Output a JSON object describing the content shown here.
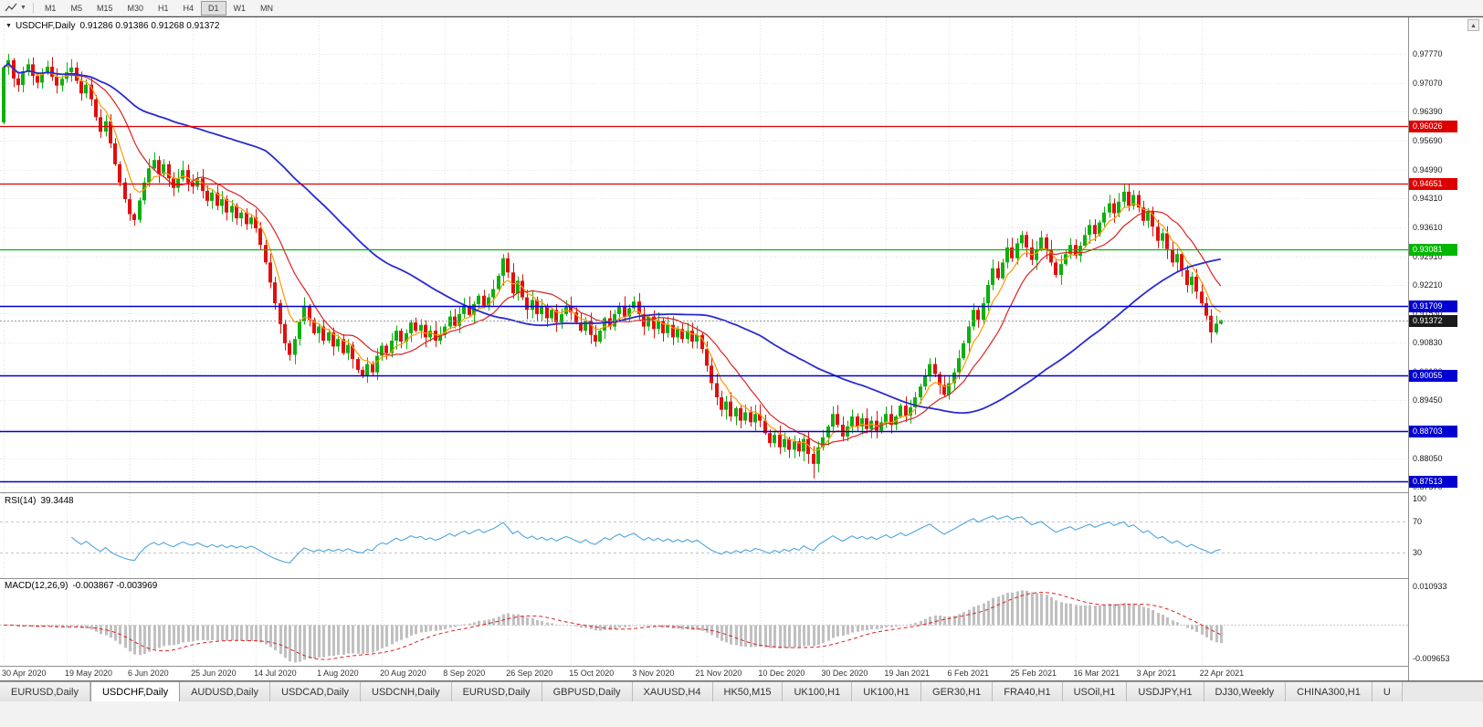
{
  "toolbar": {
    "timeframes": [
      "M1",
      "M5",
      "M15",
      "M30",
      "H1",
      "H4",
      "D1",
      "W1",
      "MN"
    ],
    "active_timeframe": "D1"
  },
  "chart": {
    "symbol_period": "USDCHF,Daily",
    "ohlc_text": "0.91286 0.91386 0.91268 0.91372"
  },
  "price_axis": [
    "0.97770",
    "0.97070",
    "0.96390",
    "0.95690",
    "0.94990",
    "0.94310",
    "0.93610",
    "0.92910",
    "0.92210",
    "0.91530",
    "0.90830",
    "0.90130",
    "0.89450",
    "0.88750",
    "0.88050",
    "0.87370"
  ],
  "hlines": [
    {
      "label": "0.96026",
      "price": 0.96026,
      "color": "red"
    },
    {
      "label": "0.94651",
      "price": 0.94651,
      "color": "red"
    },
    {
      "label": "0.93081",
      "price": 0.93081,
      "color": "green"
    },
    {
      "label": "0.91709",
      "price": 0.91709,
      "color": "blue"
    },
    {
      "label": "0.90055",
      "price": 0.90055,
      "color": "blue"
    },
    {
      "label": "0.88703",
      "price": 0.88703,
      "color": "blue"
    },
    {
      "label": "0.87513",
      "price": 0.87513,
      "color": "blue"
    }
  ],
  "current_price": {
    "label": "0.91372",
    "price": 0.91372
  },
  "indicators": {
    "rsi": {
      "label": "RSI(14)",
      "value": "39.3448",
      "levels": [
        "100",
        "70",
        "30"
      ],
      "level_values": [
        100,
        70,
        30
      ]
    },
    "macd": {
      "label": "MACD(12,26,9)",
      "values": "-0.003867 -0.003969",
      "axis_max": "0.010933",
      "axis_min": "-0.009653",
      "axis_max_value": 0.010933,
      "axis_min_value": -0.009653
    }
  },
  "dates": [
    "30 Apr 2020",
    "19 May 2020",
    "6 Jun 2020",
    "25 Jun 2020",
    "14 Jul 2020",
    "1 Aug 2020",
    "20 Aug 2020",
    "8 Sep 2020",
    "26 Sep 2020",
    "15 Oct 2020",
    "3 Nov 2020",
    "21 Nov 2020",
    "10 Dec 2020",
    "30 Dec 2020",
    "19 Jan 2021",
    "6 Feb 2021",
    "25 Feb 2021",
    "16 Mar 2021",
    "3 Apr 2021",
    "22 Apr 2021"
  ],
  "tabs": [
    {
      "label": "EURUSD,Daily",
      "active": false
    },
    {
      "label": "USDCHF,Daily",
      "active": true
    },
    {
      "label": "AUDUSD,Daily",
      "active": false
    },
    {
      "label": "USDCAD,Daily",
      "active": false
    },
    {
      "label": "USDCNH,Daily",
      "active": false
    },
    {
      "label": "EURUSD,Daily",
      "active": false
    },
    {
      "label": "GBPUSD,Daily",
      "active": false
    },
    {
      "label": "XAUUSD,H4",
      "active": false
    },
    {
      "label": "HK50,M15",
      "active": false
    },
    {
      "label": "UK100,H1",
      "active": false
    },
    {
      "label": "UK100,H1",
      "active": false
    },
    {
      "label": "GER30,H1",
      "active": false
    },
    {
      "label": "FRA40,H1",
      "active": false
    },
    {
      "label": "USOil,H1",
      "active": false
    },
    {
      "label": "USDJPY,H1",
      "active": false
    },
    {
      "label": "DJ30,Weekly",
      "active": false
    },
    {
      "label": "CHINA300,H1",
      "active": false
    },
    {
      "label": "U",
      "active": false
    }
  ],
  "colors": {
    "up": "#0faf0f",
    "down": "#e01010",
    "ma_fast": "#ff9900",
    "ma_mid": "#dd2222",
    "ma_slow": "#2a2ad0",
    "rsi_line": "#4da6dd",
    "macd_hist": "#c0c0c0",
    "macd_signal": "#e02020",
    "hline_red": "#dd0000",
    "hline_green": "#00b600",
    "hline_blue": "#0000d0",
    "current_badge": "#1a1a1a",
    "grid": "#e3e3e3"
  },
  "chart_data": {
    "type": "candlestick",
    "symbol": "USDCHF",
    "period": "Daily",
    "current_ohlc": {
      "open": 0.91286,
      "high": 0.91386,
      "low": 0.91268,
      "close": 0.91372
    },
    "first_open": 0.9612,
    "y_axis_range": [
      0.8737,
      0.9777
    ],
    "x_labels_every": 13,
    "closes": [
      0.9745,
      0.9762,
      0.9718,
      0.9702,
      0.9735,
      0.9752,
      0.9724,
      0.9708,
      0.9732,
      0.9746,
      0.9722,
      0.9701,
      0.9717,
      0.9733,
      0.9744,
      0.9712,
      0.9682,
      0.9703,
      0.9668,
      0.9625,
      0.959,
      0.9615,
      0.9562,
      0.9512,
      0.9468,
      0.9428,
      0.9392,
      0.9378,
      0.9425,
      0.9468,
      0.9502,
      0.9522,
      0.9488,
      0.9512,
      0.9478,
      0.9455,
      0.9477,
      0.9498,
      0.9468,
      0.9458,
      0.9478,
      0.9448,
      0.9424,
      0.9444,
      0.9412,
      0.9428,
      0.9396,
      0.9412,
      0.9382,
      0.9396,
      0.9368,
      0.9384,
      0.9358,
      0.9318,
      0.9276,
      0.9228,
      0.9178,
      0.9128,
      0.9082,
      0.9054,
      0.9092,
      0.9134,
      0.9172,
      0.9138,
      0.9106,
      0.9122,
      0.9088,
      0.9108,
      0.9074,
      0.9092,
      0.9058,
      0.9078,
      0.9044,
      0.9018,
      0.9004,
      0.9032,
      0.9012,
      0.9052,
      0.9076,
      0.9058,
      0.9088,
      0.9112,
      0.9086,
      0.9106,
      0.9132,
      0.9112,
      0.9126,
      0.9096,
      0.9112,
      0.9088,
      0.9102,
      0.9122,
      0.9146,
      0.9124,
      0.9152,
      0.9172,
      0.915,
      0.9176,
      0.9196,
      0.9172,
      0.9192,
      0.9212,
      0.9244,
      0.9286,
      0.9252,
      0.9202,
      0.9232,
      0.9192,
      0.9162,
      0.9186,
      0.9152,
      0.9172,
      0.9142,
      0.9162,
      0.9132,
      0.9152,
      0.9172,
      0.9156,
      0.9132,
      0.9112,
      0.9136,
      0.9102,
      0.9086,
      0.9112,
      0.9142,
      0.9122,
      0.9152,
      0.9172,
      0.9146,
      0.9166,
      0.9182,
      0.9152,
      0.9122,
      0.9146,
      0.9116,
      0.9136,
      0.9106,
      0.9126,
      0.9096,
      0.9116,
      0.9092,
      0.9112,
      0.9086,
      0.9102,
      0.9068,
      0.9028,
      0.8986,
      0.8952,
      0.8922,
      0.8942,
      0.8906,
      0.8926,
      0.8896,
      0.8916,
      0.8892,
      0.8912,
      0.8896,
      0.8866,
      0.8842,
      0.8862,
      0.8832,
      0.8852,
      0.8826,
      0.8846,
      0.8822,
      0.8852,
      0.8816,
      0.8792,
      0.8832,
      0.8856,
      0.8882,
      0.8912,
      0.8886,
      0.8858,
      0.8882,
      0.8906,
      0.8882,
      0.8902,
      0.8876,
      0.8896,
      0.8872,
      0.8892,
      0.8912,
      0.8886,
      0.8906,
      0.8932,
      0.8908,
      0.8928,
      0.8952,
      0.8978,
      0.9004,
      0.9032,
      0.9008,
      0.8982,
      0.8958,
      0.8986,
      0.9012,
      0.9046,
      0.9082,
      0.9122,
      0.9162,
      0.9138,
      0.9178,
      0.9222,
      0.9262,
      0.9238,
      0.9276,
      0.9312,
      0.9286,
      0.9322,
      0.9342,
      0.9312,
      0.9282,
      0.9308,
      0.9336,
      0.9306,
      0.9276,
      0.9246,
      0.9272,
      0.9296,
      0.9318,
      0.9292,
      0.9316,
      0.9342,
      0.9366,
      0.9344,
      0.9372,
      0.9396,
      0.9418,
      0.9394,
      0.9422,
      0.9446,
      0.9412,
      0.9438,
      0.9408,
      0.9376,
      0.9398,
      0.9362,
      0.9328,
      0.9346,
      0.9308,
      0.9276,
      0.9296,
      0.9258,
      0.9222,
      0.9242,
      0.9206,
      0.9178,
      0.9148,
      0.9108,
      0.9129,
      0.9137
    ],
    "spikes": {
      "1": {
        "h": 0.9777
      },
      "26": {
        "l": 0.9376
      },
      "59": {
        "l": 0.904
      },
      "74": {
        "l": 0.8998
      },
      "103": {
        "h": 0.9296
      },
      "167": {
        "l": 0.8757
      },
      "191": {
        "h": 0.9046
      },
      "231": {
        "h": 0.9465
      },
      "249": {
        "l": 0.9082
      }
    }
  }
}
